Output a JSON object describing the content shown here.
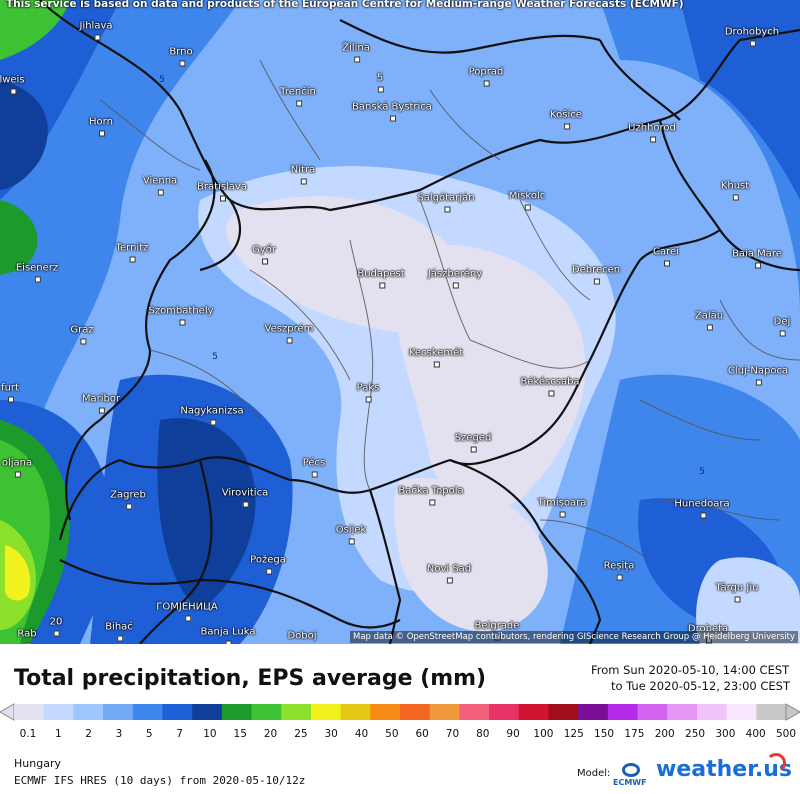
{
  "map": {
    "banner": "This service is based on data and products of the European Centre for Medium-range Weather Forecasts (ECMWF)",
    "attribution": "Map data © OpenStreetMap contributors, rendering GIScience Research Group @ Heidelberg University",
    "contour_label": "5",
    "cities": [
      "Jihlava",
      "Brno",
      "Žilina",
      "Poprad",
      "Drohobych",
      "lweis",
      "5",
      "Trenčín",
      "Banská Bystrica",
      "Košice",
      "Horn",
      "Uzhhorod",
      "Vienna",
      "Bratislava",
      "Nitra",
      "Miskolc",
      "Salgótarján",
      "Khust",
      "Ternitz",
      "Győr",
      "Budapest",
      "Jászberény",
      "Debrecen",
      "Carei",
      "Baia Mare",
      "Eisenerz",
      "Szombathely",
      "Zalău",
      "Dej",
      "Graz",
      "Veszprém",
      "Kecskemét",
      "Cluj-Napoca",
      "Békéscsaba",
      "Paks",
      "Maribor",
      "furt",
      "Nagykanizsa",
      "Szeged",
      "Pécs",
      "oljana",
      "Zagreb",
      "Virovitica",
      "Bačka Topola",
      "Timișoara",
      "Hunedoara",
      "Osijek",
      "Reșița",
      "Požega",
      "Novi Sad",
      "Târgu Jiu",
      "Bihać",
      "ГОМЈЕНИЦА",
      "Banja Luka",
      "Doboj",
      "Belgrade",
      "Drobeta",
      "Rab",
      "20"
    ]
  },
  "legend": {
    "title": "Total precipitation, EPS average (mm)",
    "from": "From Sun 2020-05-10, 14:00 CEST",
    "to": "to Tue 2020-05-12, 23:00 CEST",
    "ticks": [
      "0.1",
      "1",
      "2",
      "3",
      "5",
      "7",
      "10",
      "15",
      "20",
      "25",
      "30",
      "40",
      "50",
      "60",
      "70",
      "80",
      "90",
      "100",
      "125",
      "150",
      "175",
      "200",
      "250",
      "300",
      "400",
      "500"
    ],
    "colors": [
      "#e3e0ef",
      "#c3d9ff",
      "#9fc6ff",
      "#72a9f6",
      "#3f86ec",
      "#1f5fd6",
      "#0f3f9a",
      "#1c9a2c",
      "#3cc232",
      "#8ae02a",
      "#f2f21e",
      "#e6c814",
      "#f58a14",
      "#f26622",
      "#f0983c",
      "#f25f78",
      "#e63264",
      "#d01432",
      "#a00e1e",
      "#7a0e96",
      "#b42ae6",
      "#d264f0",
      "#e696f5",
      "#f0c3fa",
      "#f8e6fc",
      "#c8c8c8"
    ]
  },
  "footer": {
    "region": "Hungary",
    "model_line": "ECMWF IFS HRES (10 days) from 2020-05-10/12z",
    "model_label": "Model:",
    "ecmwf_text": "ECMWF",
    "brand": "weather.us"
  }
}
